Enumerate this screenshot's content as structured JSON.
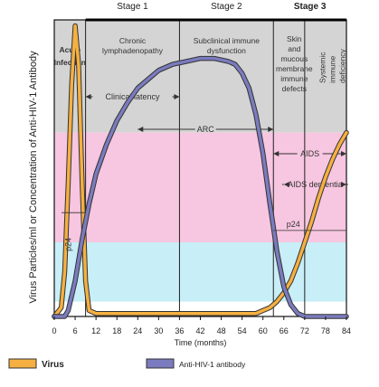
{
  "chart_data": {
    "type": "line",
    "title": "",
    "xlabel": "Time (months)",
    "ylabel": "Virus Particles/ml or Concentration of Anti-HIV-1 Antibody",
    "xlim": [
      0,
      84
    ],
    "x_ticks": [
      0,
      6,
      12,
      18,
      24,
      30,
      36,
      42,
      48,
      54,
      60,
      66,
      72,
      78,
      84
    ],
    "x_tick_labels": [
      "0",
      "6",
      "12",
      "18",
      "24",
      "30",
      "36",
      "42",
      "48",
      "54",
      "60",
      "66",
      "72",
      "78",
      "84"
    ],
    "stages": [
      {
        "label": "Stage 1",
        "start": 9,
        "end": 36
      },
      {
        "label": "Stage 2",
        "start": 36,
        "end": 63
      },
      {
        "label": "Stage 3",
        "start": 63,
        "end": 84
      }
    ],
    "phases": [
      {
        "label": "Acute Infection",
        "x": 4.5
      },
      {
        "label": "Chronic lymphadenopathy",
        "x": 22.5
      },
      {
        "label": "Subclinical immune dysfunction",
        "x": 49.5
      },
      {
        "label": "Skin and mucous membrane immune defects",
        "x": 69
      },
      {
        "label": "Systemic immune deficiency",
        "x": 80
      }
    ],
    "annotations": [
      {
        "label": "Clinical latency",
        "from": 9,
        "to": 36
      },
      {
        "label": "ARC",
        "from": 24,
        "to": 63
      },
      {
        "label": "AIDS",
        "from": 63,
        "to": 84
      },
      {
        "label": "AIDS dementia",
        "from": 66,
        "to": 84
      }
    ],
    "y_annotations": [
      {
        "label": "p24",
        "series": "Virus"
      },
      {
        "label": "p24",
        "series": "Virus"
      }
    ],
    "series": [
      {
        "name": "Virus",
        "color": "#f5b041",
        "x": [
          0,
          2,
          3,
          4,
          5,
          6,
          7,
          8,
          9,
          10,
          12,
          20,
          30,
          40,
          50,
          58,
          60,
          62,
          64,
          66,
          68,
          70,
          72,
          74,
          76,
          78,
          80,
          82,
          84
        ],
        "y": [
          0,
          0.03,
          0.15,
          0.45,
          0.78,
          0.98,
          0.85,
          0.45,
          0.12,
          0.02,
          0.01,
          0.01,
          0.01,
          0.01,
          0.01,
          0.01,
          0.02,
          0.03,
          0.05,
          0.08,
          0.12,
          0.18,
          0.25,
          0.32,
          0.4,
          0.47,
          0.53,
          0.58,
          0.62
        ]
      },
      {
        "name": "Anti-HIV-1 antibody",
        "color": "#7b7bbf",
        "x": [
          0,
          3,
          4,
          6,
          8,
          10,
          12,
          15,
          18,
          21,
          24,
          27,
          30,
          34,
          38,
          42,
          46,
          50,
          52,
          54,
          56,
          58,
          60,
          62,
          63,
          64,
          66,
          68,
          70,
          72,
          76,
          80,
          84
        ],
        "y": [
          0,
          0,
          0.02,
          0.12,
          0.26,
          0.38,
          0.48,
          0.58,
          0.66,
          0.72,
          0.77,
          0.8,
          0.83,
          0.85,
          0.86,
          0.87,
          0.87,
          0.86,
          0.85,
          0.82,
          0.77,
          0.68,
          0.55,
          0.38,
          0.3,
          0.22,
          0.1,
          0.04,
          0.01,
          0,
          0,
          0,
          0
        ]
      }
    ],
    "bands": [
      {
        "color": "#d4d4d4",
        "from": 0.62,
        "to": 1.0
      },
      {
        "color": "#f7c6e0",
        "from": 0.25,
        "to": 0.62
      },
      {
        "color": "#c8eef7",
        "from": 0.05,
        "to": 0.25
      }
    ],
    "legend": {
      "position": "bottom",
      "items": [
        "Virus",
        "Anti-HIV-1 antibody"
      ]
    },
    "grid": false
  }
}
